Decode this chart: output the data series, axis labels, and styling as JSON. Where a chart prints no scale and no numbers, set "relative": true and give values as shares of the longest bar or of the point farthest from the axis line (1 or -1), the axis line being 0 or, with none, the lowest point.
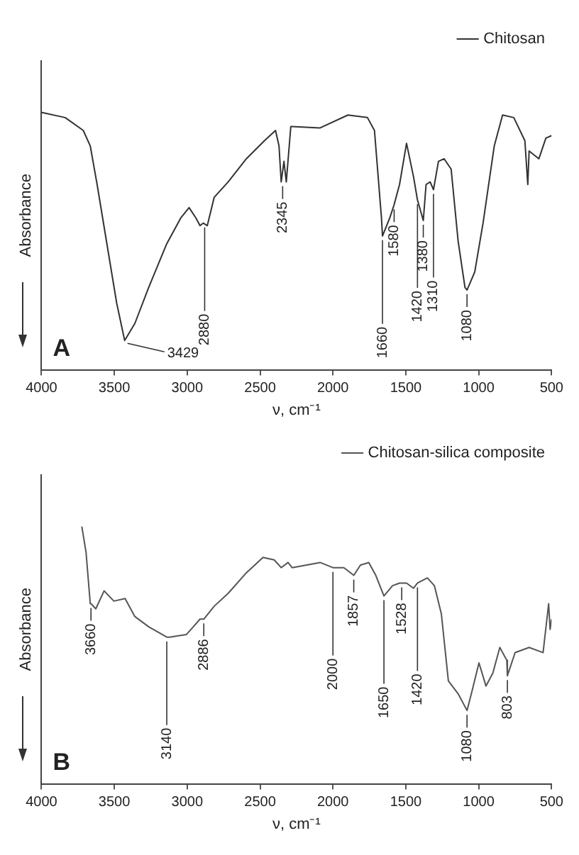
{
  "chart_data": [
    {
      "type": "line",
      "relative": true,
      "xlabel": "ν, cm⁻¹",
      "ylabel": "Absorbance",
      "xlim": [
        4000,
        500
      ],
      "xticks": [
        4000,
        3500,
        3000,
        2500,
        2000,
        1500,
        1000,
        500
      ],
      "grid": false,
      "legend": "top right",
      "marker": "none",
      "line_style": "solid",
      "x": [
        4000,
        3837,
        3713,
        3665,
        3618,
        3551,
        3484,
        3429,
        3359,
        3264,
        3140,
        3044,
        2987,
        2940,
        2912,
        2890,
        2862,
        2815,
        2719,
        2594,
        2470,
        2394,
        2370,
        2355,
        2336,
        2320,
        2289,
        2280,
        2088,
        1897,
        1763,
        1715,
        1667,
        1660,
        1610,
        1581,
        1543,
        1495,
        1447,
        1420,
        1380,
        1361,
        1333,
        1310,
        1276,
        1237,
        1189,
        1141,
        1094,
        1080,
        1027,
        970,
        893,
        836,
        759,
        683,
        663,
        654,
        587,
        539,
        500
      ],
      "series": [
        {
          "name": "Chitosan",
          "color": "#333333",
          "values": [
            1.0,
            0.98,
            0.93,
            0.87,
            0.72,
            0.49,
            0.26,
            0.114,
            0.18,
            0.32,
            0.49,
            0.59,
            0.63,
            0.59,
            0.56,
            0.57,
            0.56,
            0.67,
            0.73,
            0.82,
            0.89,
            0.93,
            0.87,
            0.73,
            0.81,
            0.73,
            0.945,
            0.945,
            0.94,
            0.99,
            0.98,
            0.93,
            0.59,
            0.52,
            0.59,
            0.64,
            0.72,
            0.88,
            0.75,
            0.66,
            0.58,
            0.72,
            0.73,
            0.7,
            0.81,
            0.82,
            0.78,
            0.5,
            0.32,
            0.31,
            0.38,
            0.57,
            0.87,
            0.99,
            0.98,
            0.89,
            0.72,
            0.85,
            0.82,
            0.9,
            0.91
          ]
        }
      ],
      "annotations": [
        {
          "text": "3429",
          "x": 3429,
          "y": 0.114
        },
        {
          "text": "2880",
          "x": 2880,
          "y": 0.57
        },
        {
          "text": "2345",
          "x": 2345,
          "y": 0.73
        },
        {
          "text": "1660",
          "x": 1660,
          "y": 0.52
        },
        {
          "text": "1580",
          "x": 1580,
          "y": 0.64
        },
        {
          "text": "1420",
          "x": 1420,
          "y": 0.66
        },
        {
          "text": "1380",
          "x": 1380,
          "y": 0.58
        },
        {
          "text": "1310",
          "x": 1310,
          "y": 0.7
        },
        {
          "text": "1080",
          "x": 1080,
          "y": 0.31
        },
        "A"
      ]
    },
    {
      "type": "line",
      "relative": true,
      "xlabel": "ν, cm⁻¹",
      "ylabel": "Absorbance",
      "xlim": [
        4000,
        500
      ],
      "xticks": [
        4000,
        3500,
        3000,
        2500,
        2000,
        1500,
        1000,
        500
      ],
      "grid": false,
      "legend": "top right",
      "marker": "none",
      "line_style": "solid",
      "x": [
        3723,
        3694,
        3665,
        3660,
        3627,
        3570,
        3503,
        3426,
        3359,
        3264,
        3140,
        3120,
        3006,
        2958,
        2912,
        2886,
        2815,
        2719,
        2594,
        2480,
        2403,
        2355,
        2308,
        2280,
        2088,
        2000,
        1925,
        1857,
        1811,
        1754,
        1706,
        1650,
        1591,
        1543,
        1528,
        1495,
        1447,
        1420,
        1352,
        1304,
        1256,
        1208,
        1141,
        1080,
        1046,
        998,
        950,
        903,
        855,
        807,
        803,
        750,
        654,
        558,
        520,
        510,
        500
      ],
      "series": [
        {
          "name": "Chitosan-silica composite",
          "color": "#555555",
          "values": [
            1.0,
            0.9,
            0.7,
            0.7,
            0.68,
            0.75,
            0.71,
            0.72,
            0.65,
            0.61,
            0.57,
            0.57,
            0.58,
            0.61,
            0.64,
            0.64,
            0.69,
            0.74,
            0.82,
            0.88,
            0.87,
            0.84,
            0.86,
            0.84,
            0.86,
            0.84,
            0.84,
            0.81,
            0.85,
            0.86,
            0.81,
            0.73,
            0.77,
            0.78,
            0.78,
            0.78,
            0.76,
            0.78,
            0.8,
            0.77,
            0.66,
            0.4,
            0.35,
            0.285,
            0.36,
            0.47,
            0.38,
            0.43,
            0.53,
            0.48,
            0.42,
            0.51,
            0.53,
            0.51,
            0.7,
            0.6,
            0.64
          ]
        }
      ],
      "annotations": [
        {
          "text": "3660",
          "x": 3660,
          "y": 0.7
        },
        {
          "text": "3140",
          "x": 3140,
          "y": 0.57
        },
        {
          "text": "2886",
          "x": 2886,
          "y": 0.64
        },
        {
          "text": "2000",
          "x": 2000,
          "y": 0.84
        },
        {
          "text": "1857",
          "x": 1857,
          "y": 0.81
        },
        {
          "text": "1650",
          "x": 1650,
          "y": 0.73
        },
        {
          "text": "1528",
          "x": 1528,
          "y": 0.78
        },
        {
          "text": "1420",
          "x": 1420,
          "y": 0.78
        },
        {
          "text": "1080",
          "x": 1080,
          "y": 0.285
        },
        {
          "text": "803",
          "x": 803,
          "y": 0.42
        },
        "B"
      ]
    }
  ]
}
